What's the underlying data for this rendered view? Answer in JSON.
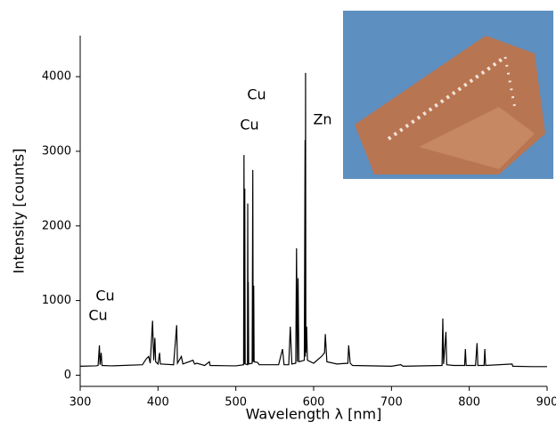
{
  "chart_data": {
    "type": "line",
    "xlabel": "Wavelength λ [nm]",
    "ylabel": "Intensity [counts]",
    "annotations": [
      "Cu",
      "Cu",
      "Cu",
      "Cu",
      "Zn"
    ],
    "xlim": [
      300,
      900
    ],
    "xticks": [
      300,
      400,
      500,
      600,
      700,
      800,
      900
    ],
    "ylim": [
      -150,
      4550
    ],
    "yticks": [
      0,
      1000,
      2000,
      3000,
      4000
    ],
    "color": "#000000",
    "x": [
      300,
      320,
      323,
      324.7,
      325.5,
      327,
      328,
      340,
      380,
      385,
      388,
      390,
      393,
      394.5,
      396,
      397,
      400,
      402,
      403,
      420,
      424,
      425,
      430,
      432,
      445,
      447,
      450,
      460,
      466,
      467,
      500,
      510,
      510.5,
      511,
      511.5,
      512,
      515,
      515.3,
      515.8,
      516,
      516.5,
      521,
      521.8,
      522.3,
      523,
      523.5,
      528,
      530,
      555,
      560,
      562,
      568,
      570,
      572,
      577,
      578,
      579,
      580,
      581,
      588,
      589,
      589.3,
      589.6,
      590,
      591,
      592,
      600,
      610,
      614,
      615,
      617,
      630,
      644,
      645,
      647,
      650,
      700,
      712,
      715,
      765,
      766,
      767,
      770,
      771,
      780,
      794,
      795,
      796,
      808,
      810,
      811,
      819,
      820,
      821,
      855,
      856,
      880,
      900
    ],
    "values": [
      120,
      125,
      130,
      400,
      140,
      300,
      130,
      125,
      140,
      220,
      250,
      160,
      730,
      200,
      500,
      180,
      150,
      300,
      150,
      140,
      670,
      160,
      250,
      150,
      200,
      150,
      160,
      130,
      180,
      130,
      125,
      140,
      2950,
      150,
      2500,
      150,
      140,
      2300,
      150,
      1250,
      150,
      160,
      2750,
      180,
      1200,
      180,
      170,
      140,
      140,
      350,
      140,
      140,
      650,
      150,
      160,
      1700,
      180,
      1300,
      180,
      200,
      3150,
      250,
      4050,
      300,
      650,
      200,
      160,
      250,
      300,
      550,
      180,
      150,
      160,
      400,
      160,
      130,
      120,
      140,
      120,
      130,
      760,
      150,
      580,
      140,
      130,
      130,
      350,
      130,
      130,
      430,
      130,
      130,
      350,
      130,
      150,
      120,
      115,
      115
    ]
  }
}
